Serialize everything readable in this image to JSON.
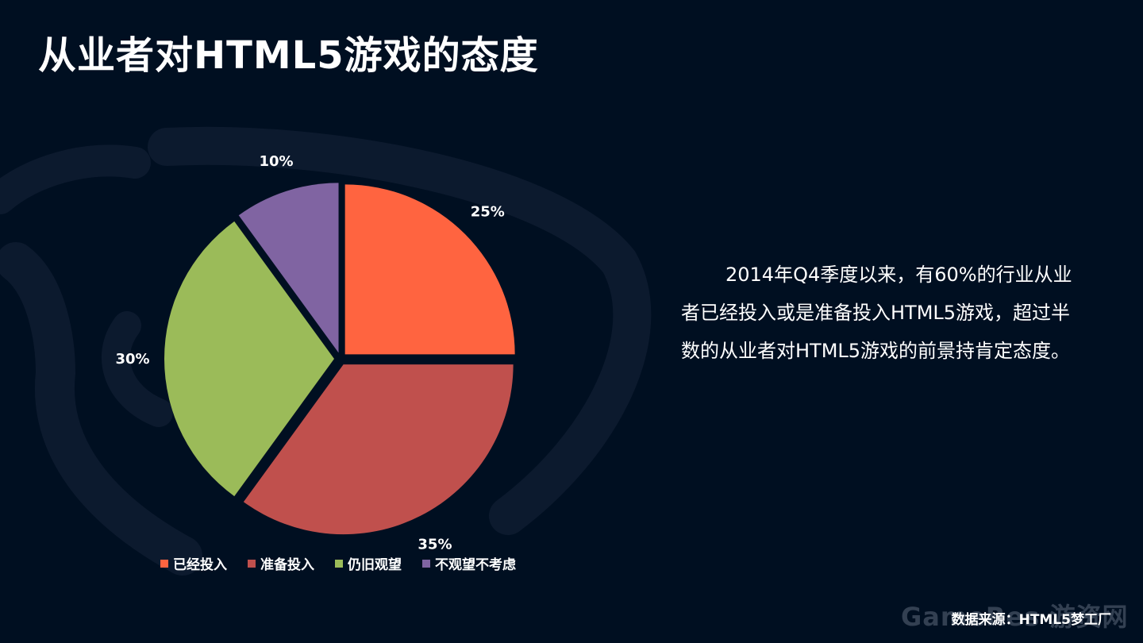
{
  "title": "从业者对HTML5游戏的态度",
  "chart_data": {
    "type": "pie",
    "title": "",
    "start_angle": 0,
    "slices": [
      {
        "name": "已经投入",
        "value": 25,
        "label": "25%",
        "color": "#ff6440"
      },
      {
        "name": "准备投入",
        "value": 35,
        "label": "35%",
        "color": "#c0504d"
      },
      {
        "name": "仍旧观望",
        "value": 30,
        "label": "30%",
        "color": "#9bbb59"
      },
      {
        "name": "不观望不考虑",
        "value": 10,
        "label": "10%",
        "color": "#8064a2"
      }
    ],
    "legend_position": "bottom"
  },
  "summary": "2014年Q4季度以来，有60%的行业从业者已经投入或是准备投入HTML5游戏，超过半数的从业者对HTML5游戏的前景持肯定态度。",
  "source": "数据来源：HTML5梦工厂",
  "watermark": "GameRes 游资网",
  "colors": {
    "background": "#000f21",
    "decoration": "#0c1a2e"
  }
}
